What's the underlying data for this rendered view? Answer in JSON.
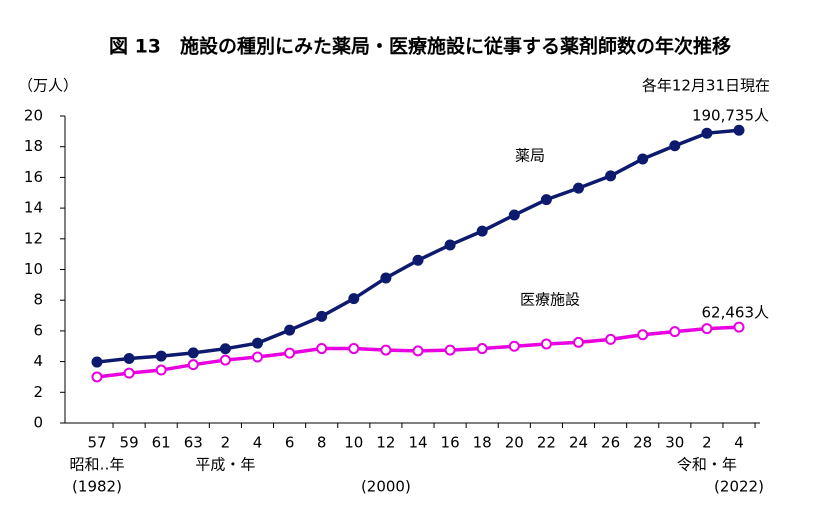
{
  "chart_data": {
    "type": "line",
    "title": "図 13　施設の種別にみた薬局・医療施設に従事する薬剤師数の年次推移",
    "y_unit": "（万人）",
    "note": "各年12月31日現在",
    "categories": [
      "57",
      "59",
      "61",
      "63",
      "2",
      "4",
      "6",
      "8",
      "10",
      "12",
      "14",
      "16",
      "18",
      "20",
      "22",
      "24",
      "26",
      "28",
      "30",
      "2",
      "4"
    ],
    "era_labels": [
      {
        "text": "昭和‥年",
        "index": 0
      },
      {
        "text": "平成・年",
        "index": 4
      },
      {
        "text": "令和・年",
        "index": 19
      }
    ],
    "year_labels": [
      {
        "text": "(1982)",
        "index": 0
      },
      {
        "text": "(2000)",
        "index": 9
      },
      {
        "text": "(2022)",
        "index": 20
      }
    ],
    "series": [
      {
        "name": "薬局",
        "color": "#0d1a6e",
        "marker_fill": "#0d1a6e",
        "values": [
          3.97,
          4.2,
          4.36,
          4.57,
          4.84,
          5.2,
          6.05,
          6.95,
          8.1,
          9.45,
          10.6,
          11.6,
          12.5,
          13.55,
          14.55,
          15.3,
          16.1,
          17.2,
          18.06,
          18.88,
          19.0735
        ],
        "value_labels": [
          null,
          null,
          null,
          null,
          null,
          null,
          null,
          null,
          null,
          null,
          null,
          null,
          null,
          null,
          null,
          null,
          null,
          null,
          null,
          null,
          "190,735人"
        ]
      },
      {
        "name": "医療施設",
        "color": "#e800e0",
        "marker_fill": "#ffffff",
        "values": [
          3.0,
          3.25,
          3.45,
          3.8,
          4.1,
          4.3,
          4.55,
          4.85,
          4.85,
          4.75,
          4.7,
          4.75,
          4.85,
          5.0,
          5.15,
          5.25,
          5.45,
          5.75,
          5.95,
          6.15,
          6.2463
        ],
        "value_labels": [
          null,
          null,
          null,
          null,
          null,
          null,
          null,
          null,
          null,
          null,
          null,
          null,
          null,
          null,
          null,
          null,
          null,
          null,
          null,
          null,
          "62,463人"
        ]
      }
    ],
    "ylim": [
      0,
      20
    ],
    "yticks": [
      0,
      2,
      4,
      6,
      8,
      10,
      12,
      14,
      16,
      18,
      20
    ]
  }
}
